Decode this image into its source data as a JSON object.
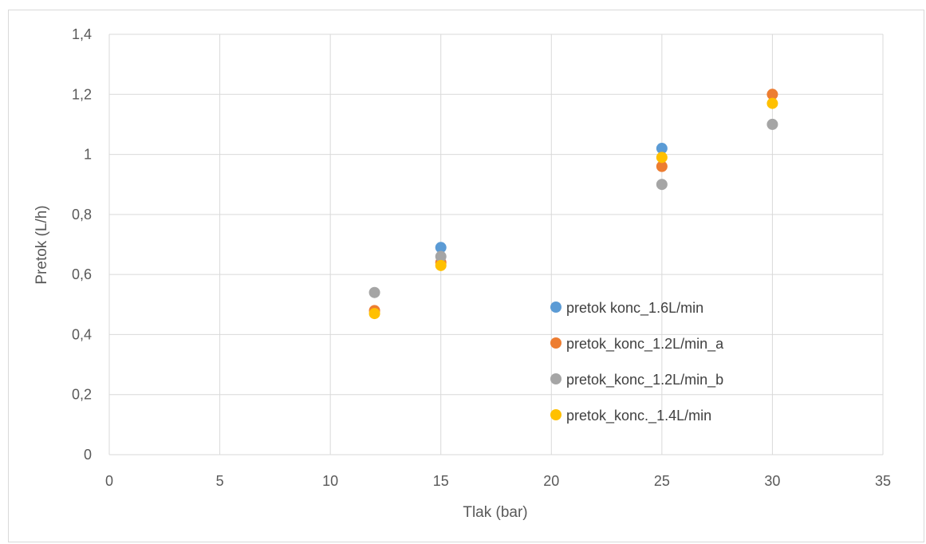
{
  "chart_data": {
    "type": "scatter",
    "title": "",
    "xlabel": "Tlak (bar)",
    "ylabel": "Pretok (L/h)",
    "xlim": [
      0,
      35
    ],
    "ylim": [
      0,
      1.4
    ],
    "x_ticks": [
      "0",
      "5",
      "10",
      "15",
      "20",
      "25",
      "30",
      "35"
    ],
    "y_ticks": [
      "0",
      "0,2",
      "0,4",
      "0,6",
      "0,8",
      "1",
      "1,2",
      "1,4"
    ],
    "grid": true,
    "legend_position": "inside-right",
    "series": [
      {
        "name": "pretok konc_1.6L/min",
        "color": "#5B9BD5",
        "x": [
          15,
          25
        ],
        "y": [
          0.69,
          1.02
        ]
      },
      {
        "name": "pretok_konc_1.2L/min_a",
        "color": "#ED7D31",
        "x": [
          12,
          15,
          25,
          30
        ],
        "y": [
          0.48,
          0.64,
          0.96,
          1.2
        ]
      },
      {
        "name": "pretok_konc_1.2L/min_b",
        "color": "#A5A5A5",
        "x": [
          12,
          15,
          25,
          30
        ],
        "y": [
          0.54,
          0.66,
          0.9,
          1.1
        ]
      },
      {
        "name": "pretok_konc._1.4L/min",
        "color": "#FFC000",
        "x": [
          12,
          15,
          25,
          30
        ],
        "y": [
          0.47,
          0.63,
          0.99,
          1.17
        ]
      }
    ]
  }
}
